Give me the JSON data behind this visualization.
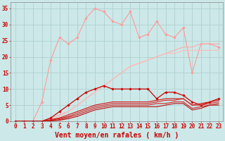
{
  "background_color": "#cce8e8",
  "grid_color": "#aacccc",
  "xlabel": "Vent moyen/en rafales ( km/h )",
  "xlabel_color": "#cc0000",
  "xlabel_fontsize": 7,
  "ylabel_ticks": [
    0,
    5,
    10,
    15,
    20,
    25,
    30,
    35
  ],
  "xlim": [
    -0.5,
    23.5
  ],
  "ylim": [
    0,
    37
  ],
  "x_values": [
    0,
    1,
    2,
    3,
    4,
    5,
    6,
    7,
    8,
    9,
    10,
    11,
    12,
    13,
    14,
    15,
    16,
    17,
    18,
    19,
    20,
    21,
    22,
    23
  ],
  "series": [
    {
      "name": "light_pink_wiggly",
      "color": "#ff9999",
      "linewidth": 0.8,
      "marker": "D",
      "markersize": 1.8,
      "linestyle": "-",
      "y": [
        0,
        0,
        0,
        6,
        19,
        26,
        24,
        26,
        32,
        35,
        34,
        31,
        30,
        34,
        26,
        27,
        31,
        27,
        26,
        29,
        15,
        24,
        24,
        23
      ]
    },
    {
      "name": "light_pink_straight1",
      "color": "#ffaaaa",
      "linewidth": 0.8,
      "marker": null,
      "linestyle": "-",
      "y": [
        0,
        0,
        0,
        0,
        1,
        2,
        3,
        5,
        7,
        9,
        11,
        13,
        15,
        17,
        18,
        19,
        20,
        21,
        22,
        23,
        23,
        24,
        24,
        24
      ]
    },
    {
      "name": "light_pink_straight2",
      "color": "#ffbbbb",
      "linewidth": 0.8,
      "marker": null,
      "linestyle": "-",
      "y": [
        0,
        0,
        0,
        0,
        0.5,
        1.5,
        3,
        5,
        7,
        9,
        11,
        13,
        15,
        17,
        18,
        19,
        20,
        21,
        21,
        22,
        22,
        22,
        22,
        22
      ]
    },
    {
      "name": "red_markers",
      "color": "#cc0000",
      "linewidth": 0.9,
      "marker": "D",
      "markersize": 1.8,
      "linestyle": "-",
      "y": [
        0,
        0,
        0,
        0,
        1,
        3,
        5,
        7,
        9,
        10,
        11,
        10,
        10,
        10,
        10,
        10,
        7,
        9,
        9,
        8,
        6,
        5,
        6,
        7
      ]
    },
    {
      "name": "red_line1",
      "color": "#cc1111",
      "linewidth": 0.8,
      "marker": null,
      "linestyle": "-",
      "y": [
        0,
        0,
        0,
        0,
        0.5,
        1,
        2,
        3,
        4,
        5,
        5.5,
        6,
        6,
        6,
        6,
        6,
        6.5,
        7,
        7,
        7,
        5,
        5.5,
        6,
        6.5
      ]
    },
    {
      "name": "red_line2",
      "color": "#dd2222",
      "linewidth": 0.8,
      "marker": null,
      "linestyle": "-",
      "y": [
        0,
        0,
        0,
        0,
        0.3,
        0.8,
        1.5,
        2.5,
        3.5,
        4.5,
        5,
        5.5,
        5.5,
        5.5,
        5.5,
        5.5,
        6,
        6.5,
        6.5,
        7,
        5,
        5,
        5.5,
        6
      ]
    },
    {
      "name": "red_line3",
      "color": "#cc2222",
      "linewidth": 0.8,
      "marker": null,
      "linestyle": "-",
      "y": [
        0,
        0,
        0,
        0,
        0.2,
        0.5,
        1.2,
        2,
        3,
        4,
        4.5,
        5,
        5,
        5,
        5,
        5,
        5.5,
        5.5,
        6,
        6,
        4,
        4.5,
        5,
        5.5
      ]
    },
    {
      "name": "red_line4",
      "color": "#bb1111",
      "linewidth": 0.8,
      "marker": null,
      "linestyle": "-",
      "y": [
        0,
        0,
        0,
        0,
        0.1,
        0.3,
        0.8,
        1.5,
        2.5,
        3.5,
        4,
        4.5,
        4.5,
        4.5,
        4.5,
        4.5,
        4.5,
        5,
        5.5,
        5.5,
        3.5,
        4,
        5,
        5
      ]
    },
    {
      "name": "dashed_arrows",
      "color": "#ff7777",
      "linewidth": 0.7,
      "marker": null,
      "linestyle": "--",
      "y": [
        -0.3,
        -0.3,
        -0.3,
        -0.3,
        -0.3,
        -0.3,
        -0.3,
        -0.3,
        -0.3,
        -0.3,
        -0.3,
        -0.3,
        -0.3,
        -0.3,
        -0.3,
        -0.3,
        -0.3,
        -0.3,
        -0.3,
        -0.3,
        -0.3,
        -0.3,
        -0.3,
        -0.3
      ]
    }
  ],
  "tick_color": "#cc0000",
  "tick_fontsize": 5.5,
  "axis_color": "#888888"
}
